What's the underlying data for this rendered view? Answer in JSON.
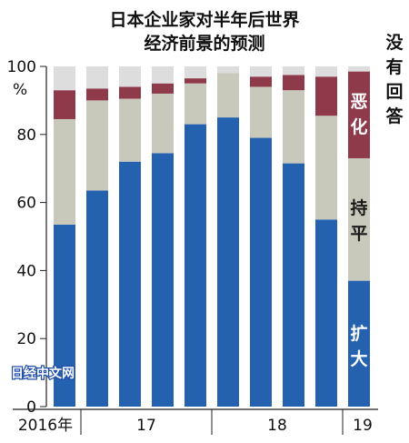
{
  "chart_data": {
    "type": "bar",
    "stacked": true,
    "title_lines": [
      "日本企业家对半年后世界",
      "经济前景的预测"
    ],
    "ylim": [
      0,
      100
    ],
    "yticks": [
      "0",
      "20",
      "40",
      "60",
      "80",
      "100"
    ],
    "ylabel": "%",
    "x_period_labels": [
      "2016年",
      "17",
      "18",
      "19"
    ],
    "grid": false,
    "series": [
      {
        "name": "扩大",
        "color": "#2461ae",
        "values": [
          53.5,
          63.5,
          72,
          74.5,
          83,
          85,
          79,
          71.5,
          55,
          37
        ]
      },
      {
        "name": "持平",
        "color": "#c8c8bb",
        "values": [
          31,
          26.5,
          18.5,
          17.5,
          12,
          13,
          15,
          21.5,
          30.5,
          36
        ]
      },
      {
        "name": "恶化",
        "color": "#8f3a4b",
        "values": [
          8.5,
          3.5,
          3.5,
          3,
          1.5,
          0,
          3,
          4.5,
          11.5,
          25.5
        ]
      },
      {
        "name": "没有回答",
        "color": "#dddddd",
        "values": [
          7,
          6.5,
          6,
          5,
          3.5,
          2,
          3,
          2.5,
          3,
          1.5
        ]
      }
    ],
    "legend_labels": {
      "expand": [
        "扩",
        "大"
      ],
      "flat": [
        "持",
        "平"
      ],
      "worse": [
        "恶",
        "化"
      ],
      "no_answer": [
        "没",
        "有",
        "回",
        "答"
      ]
    }
  },
  "watermark": "日经中文网"
}
